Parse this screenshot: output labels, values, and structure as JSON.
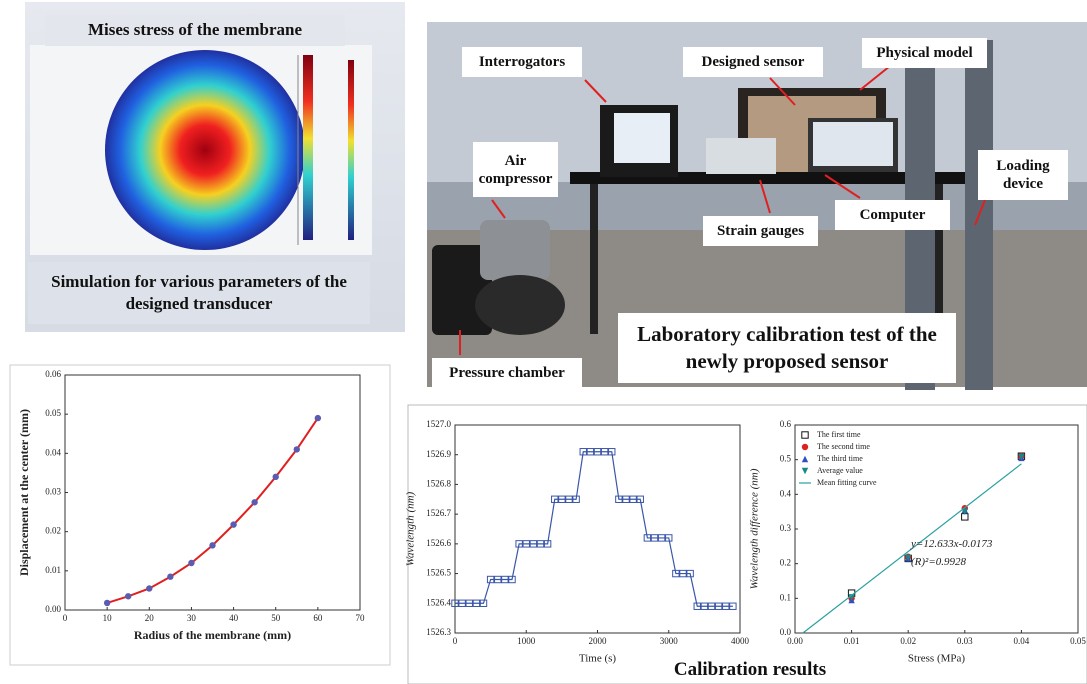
{
  "simulation": {
    "title": "Mises stress of the membrane",
    "caption": "Simulation for various parameters of the designed transducer"
  },
  "photo": {
    "labels": [
      "Interrogators",
      "Designed sensor",
      "Physical model",
      "Air compressor",
      "Loading device",
      "Computer",
      "Strain gauges",
      "Pressure chamber"
    ],
    "caption": "Laboratory calibration test of the newly proposed sensor"
  },
  "calibration_caption": "Calibration results",
  "chart_data": [
    {
      "type": "line",
      "x_label": "Radius of the membrane (mm)",
      "y_label": "Displacement at the center (mm)",
      "xlim": [
        0,
        70
      ],
      "xticks": [
        0,
        10,
        20,
        30,
        40,
        50,
        60,
        70
      ],
      "ylim": [
        0,
        0.06
      ],
      "yticks": [
        {
          "value": 0,
          "label": "0.00"
        },
        0.01,
        0.02,
        0.03,
        0.04,
        0.05,
        0.06
      ],
      "series": [
        {
          "color": "#e02020",
          "marker": "circle",
          "marker_color": "#5b5bb0",
          "line": true,
          "x": [
            10,
            15,
            20,
            25,
            30,
            35,
            40,
            45,
            50,
            55,
            60
          ],
          "values": [
            0.0018,
            0.0035,
            0.0055,
            0.0085,
            0.012,
            0.0165,
            0.0218,
            0.0275,
            0.034,
            0.041,
            0.049
          ]
        }
      ]
    },
    {
      "type": "line",
      "x_label": "Time (s)",
      "y_label": "Wavelength (nm)",
      "xlim": [
        0,
        4000
      ],
      "xticks": [
        0,
        1000,
        2000,
        3000,
        4000
      ],
      "ylim": [
        1526.3,
        1527.0
      ],
      "yticks": [
        1526.3,
        1526.4,
        1526.5,
        1526.6,
        1526.7,
        1526.8,
        1526.9,
        {
          "value": 1527.0,
          "label": "1527.0"
        }
      ],
      "series": [
        {
          "color": "#3a56a8",
          "marker": "square",
          "marker_color": "#3a56a8",
          "line": true,
          "x": [
            0,
            100,
            200,
            300,
            400,
            500,
            600,
            700,
            800,
            900,
            1000,
            1100,
            1200,
            1300,
            1400,
            1500,
            1600,
            1700,
            1800,
            1900,
            2000,
            2100,
            2200,
            2300,
            2400,
            2500,
            2600,
            2700,
            2800,
            2900,
            3000,
            3100,
            3200,
            3300,
            3400,
            3500,
            3600,
            3700,
            3800,
            3900
          ],
          "values": [
            1526.4,
            1526.4,
            1526.4,
            1526.4,
            1526.4,
            1526.48,
            1526.48,
            1526.48,
            1526.48,
            1526.6,
            1526.6,
            1526.6,
            1526.6,
            1526.6,
            1526.75,
            1526.75,
            1526.75,
            1526.75,
            1526.91,
            1526.91,
            1526.91,
            1526.91,
            1526.91,
            1526.75,
            1526.75,
            1526.75,
            1526.75,
            1526.62,
            1526.62,
            1526.62,
            1526.62,
            1526.5,
            1526.5,
            1526.5,
            1526.39,
            1526.39,
            1526.39,
            1526.39,
            1526.39,
            1526.39
          ]
        }
      ]
    },
    {
      "type": "scatter",
      "x_label": "Stress (MPa)",
      "y_label": "Wavelength difference (nm)",
      "xlim": [
        0,
        0.05
      ],
      "xticks": [
        {
          "value": 0,
          "label": "0.00"
        },
        0.01,
        0.02,
        0.03,
        0.04,
        0.05
      ],
      "ylim": [
        0,
        0.6
      ],
      "yticks": [
        {
          "value": 0,
          "label": "0.0"
        },
        0.1,
        0.2,
        0.3,
        0.4,
        0.5,
        0.6
      ],
      "legend": "upper left",
      "annotations": [
        "y=12.633x-0.0173",
        "(R)²=0.9928"
      ],
      "series": [
        {
          "name": "The first time",
          "color": "#111111",
          "marker": "square",
          "line": false,
          "x": [
            0.01,
            0.02,
            0.03,
            0.04
          ],
          "values": [
            0.115,
            0.215,
            0.335,
            0.51
          ]
        },
        {
          "name": "The second time",
          "color": "#e02020",
          "marker": "circle",
          "line": false,
          "x": [
            0.01,
            0.02,
            0.03,
            0.04
          ],
          "values": [
            0.1,
            0.22,
            0.36,
            0.51
          ]
        },
        {
          "name": "The third time",
          "color": "#3050c0",
          "marker": "triangle",
          "line": false,
          "x": [
            0.01,
            0.02,
            0.03,
            0.04
          ],
          "values": [
            0.095,
            0.215,
            0.355,
            0.505
          ]
        },
        {
          "name": "Average value",
          "color": "#138a8a",
          "marker": "triangle-down",
          "line": false,
          "x": [
            0.01,
            0.02,
            0.03,
            0.04
          ],
          "values": [
            0.103,
            0.217,
            0.35,
            0.508
          ]
        },
        {
          "name": "Mean fitting curve",
          "color": "#2aa0a0",
          "marker": "none",
          "line": true,
          "x": [
            0.0014,
            0.04
          ],
          "values": [
            0.0,
            0.488
          ]
        }
      ]
    }
  ]
}
